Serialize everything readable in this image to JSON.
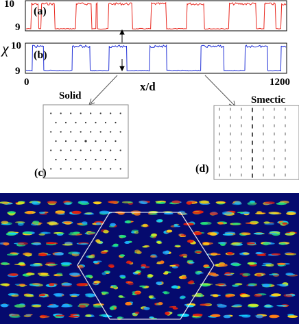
{
  "panel_labels": {
    "a": "(a)",
    "b": "(b)",
    "c": "(c)",
    "d": "(d)"
  },
  "y_axis_label": "χ",
  "x_axis_label": "x/d",
  "ticks": {
    "a_top": "10",
    "a_bottom": "9",
    "b_top": "10",
    "b_bottom": "9",
    "x_start": "0",
    "x_end": "1200"
  },
  "annotations": {
    "solid": "Solid",
    "smectic": "Smectic"
  },
  "colors": {
    "trace_a": "#e8261d",
    "trace_b": "#1f2fd6",
    "map_bg": "#050a6e"
  },
  "chart_data": [
    {
      "type": "line",
      "panel": "(a)",
      "xlabel": "x/d",
      "ylabel": "χ",
      "xlim": [
        0,
        1200
      ],
      "ylim": [
        9,
        10
      ],
      "segments": [
        [
          0,
          9
        ],
        [
          22,
          9
        ],
        [
          26,
          10
        ],
        [
          55,
          10
        ],
        [
          59,
          9
        ],
        [
          68,
          9
        ],
        [
          72,
          10
        ],
        [
          130,
          10
        ],
        [
          134,
          9
        ],
        [
          228,
          9
        ],
        [
          232,
          10
        ],
        [
          300,
          10
        ],
        [
          304,
          9
        ],
        [
          322,
          9
        ],
        [
          324,
          10
        ],
        [
          328,
          10
        ],
        [
          330,
          9
        ],
        [
          378,
          9
        ],
        [
          382,
          10
        ],
        [
          488,
          10
        ],
        [
          492,
          9
        ],
        [
          575,
          9
        ],
        [
          579,
          10
        ],
        [
          645,
          10
        ],
        [
          649,
          9
        ],
        [
          740,
          9
        ],
        [
          744,
          10
        ],
        [
          820,
          10
        ],
        [
          824,
          9
        ],
        [
          935,
          9
        ],
        [
          939,
          10
        ],
        [
          1060,
          10
        ],
        [
          1064,
          9
        ],
        [
          1098,
          9
        ],
        [
          1102,
          10
        ],
        [
          1150,
          10
        ],
        [
          1154,
          9
        ],
        [
          1176,
          9
        ],
        [
          1180,
          10
        ],
        [
          1200,
          10
        ]
      ]
    },
    {
      "type": "line",
      "panel": "(b)",
      "xlabel": "x/d",
      "ylabel": "χ",
      "xlim": [
        0,
        1200
      ],
      "ylim": [
        9,
        10
      ],
      "segments": [
        [
          0,
          9
        ],
        [
          28,
          9
        ],
        [
          30,
          10
        ],
        [
          80,
          10
        ],
        [
          82,
          9
        ],
        [
          212,
          9
        ],
        [
          214,
          10
        ],
        [
          294,
          10
        ],
        [
          296,
          9
        ],
        [
          382,
          9
        ],
        [
          384,
          10
        ],
        [
          464,
          10
        ],
        [
          466,
          9
        ],
        [
          570,
          9
        ],
        [
          572,
          10
        ],
        [
          648,
          10
        ],
        [
          650,
          9
        ],
        [
          806,
          9
        ],
        [
          808,
          10
        ],
        [
          912,
          10
        ],
        [
          914,
          9
        ],
        [
          1010,
          9
        ],
        [
          1012,
          10
        ],
        [
          1114,
          10
        ],
        [
          1116,
          9
        ],
        [
          1176,
          9
        ],
        [
          1178,
          10
        ],
        [
          1200,
          10
        ]
      ]
    }
  ]
}
